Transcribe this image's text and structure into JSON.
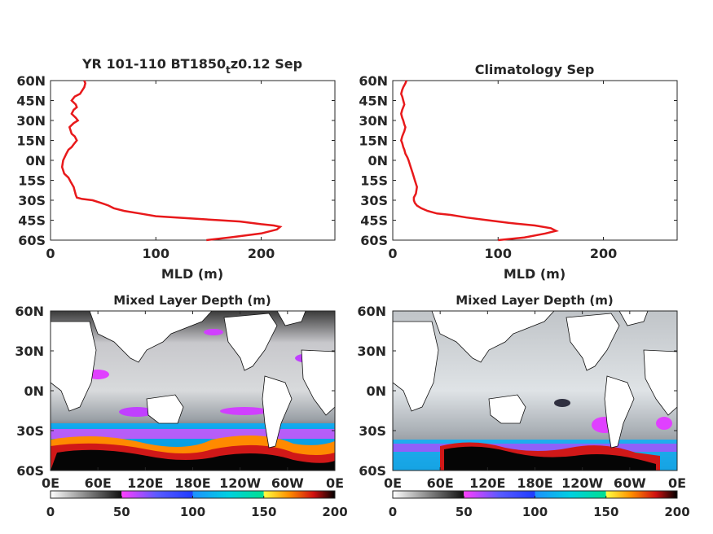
{
  "chart_data": [
    {
      "type": "line",
      "title": "YR 101-110 BT1850",
      "title_subscript": "t",
      "title_suffix": "z0.12 Sep",
      "xlabel": "MLD (m)",
      "ylabel": "",
      "xlim": [
        0,
        270
      ],
      "ylim": [
        -60,
        60
      ],
      "xticks": [
        "0",
        "100",
        "200"
      ],
      "yticks": [
        "60N",
        "45N",
        "30N",
        "15N",
        "0N",
        "15S",
        "30S",
        "45S",
        "60S"
      ],
      "color": "#e8191b",
      "series": [
        {
          "x": [
            148,
            170,
            200,
            215,
            218,
            212,
            200,
            180,
            160,
            140,
            120,
            100,
            85,
            70,
            60,
            55,
            48,
            40,
            30,
            25,
            24,
            22,
            19,
            17,
            13,
            11,
            12,
            15,
            17,
            20,
            22,
            25,
            23,
            20,
            18,
            22,
            26,
            24,
            20,
            22,
            25,
            24,
            20,
            23,
            28,
            32,
            33,
            32
          ],
          "y": [
            -60,
            -58,
            -55,
            -52,
            -50,
            -49,
            -48,
            -46,
            -45,
            -44,
            -43,
            -42,
            -40,
            -38,
            -36,
            -34,
            -32,
            -30,
            -29,
            -28,
            -26,
            -20,
            -16,
            -13,
            -10,
            -5,
            0,
            5,
            8,
            10,
            12,
            15,
            18,
            20,
            25,
            28,
            30,
            32,
            35,
            38,
            40,
            42,
            45,
            48,
            50,
            55,
            58,
            60
          ]
        }
      ]
    },
    {
      "type": "line",
      "title": "Climatology Sep",
      "xlabel": "MLD (m)",
      "ylabel": "",
      "xlim": [
        0,
        270
      ],
      "ylim": [
        -60,
        60
      ],
      "xticks": [
        "0",
        "100",
        "200"
      ],
      "yticks": [
        "60N",
        "45N",
        "30N",
        "15N",
        "0N",
        "15S",
        "30S",
        "45S",
        "60S"
      ],
      "color": "#e8191b",
      "series": [
        {
          "x": [
            100,
            125,
            145,
            155,
            150,
            135,
            110,
            90,
            70,
            55,
            42,
            33,
            27,
            23,
            21,
            20,
            20,
            22,
            23,
            21,
            19,
            17,
            15,
            14,
            12,
            11,
            10,
            9,
            8,
            9,
            10,
            11,
            12,
            11,
            10,
            9,
            8,
            9,
            10,
            11,
            10,
            9,
            8,
            9,
            10,
            12,
            13
          ],
          "y": [
            -60,
            -58,
            -55,
            -53,
            -51,
            -49,
            -47,
            -45,
            -43,
            -41,
            -40,
            -38,
            -36,
            -34,
            -32,
            -30,
            -28,
            -25,
            -20,
            -15,
            -10,
            -5,
            0,
            2,
            5,
            8,
            10,
            13,
            15,
            18,
            20,
            22,
            25,
            27,
            30,
            32,
            35,
            38,
            40,
            42,
            45,
            48,
            50,
            53,
            55,
            58,
            60
          ]
        }
      ]
    },
    {
      "type": "heatmap",
      "title": "Mixed Layer Depth (m)",
      "xticks": [
        "0E",
        "60E",
        "120E",
        "180E",
        "120W",
        "60W",
        "0E"
      ],
      "yticks": [
        "60N",
        "30N",
        "0N",
        "30S",
        "60S"
      ],
      "xlim": [
        0,
        360
      ],
      "ylim": [
        -60,
        60
      ],
      "colorbar": {
        "ticks": [
          "0",
          "50",
          "100",
          "150",
          "200"
        ],
        "range": [
          0,
          200
        ]
      }
    },
    {
      "type": "heatmap",
      "title": "Mixed Layer Depth (m)",
      "xticks": [
        "0E",
        "60E",
        "120E",
        "180E",
        "120W",
        "60W",
        "0E"
      ],
      "yticks": [
        "60N",
        "30N",
        "0N",
        "30S",
        "60S"
      ],
      "xlim": [
        0,
        360
      ],
      "ylim": [
        -60,
        60
      ],
      "colorbar": {
        "ticks": [
          "0",
          "50",
          "100",
          "150",
          "200"
        ],
        "range": [
          0,
          200
        ]
      }
    }
  ]
}
